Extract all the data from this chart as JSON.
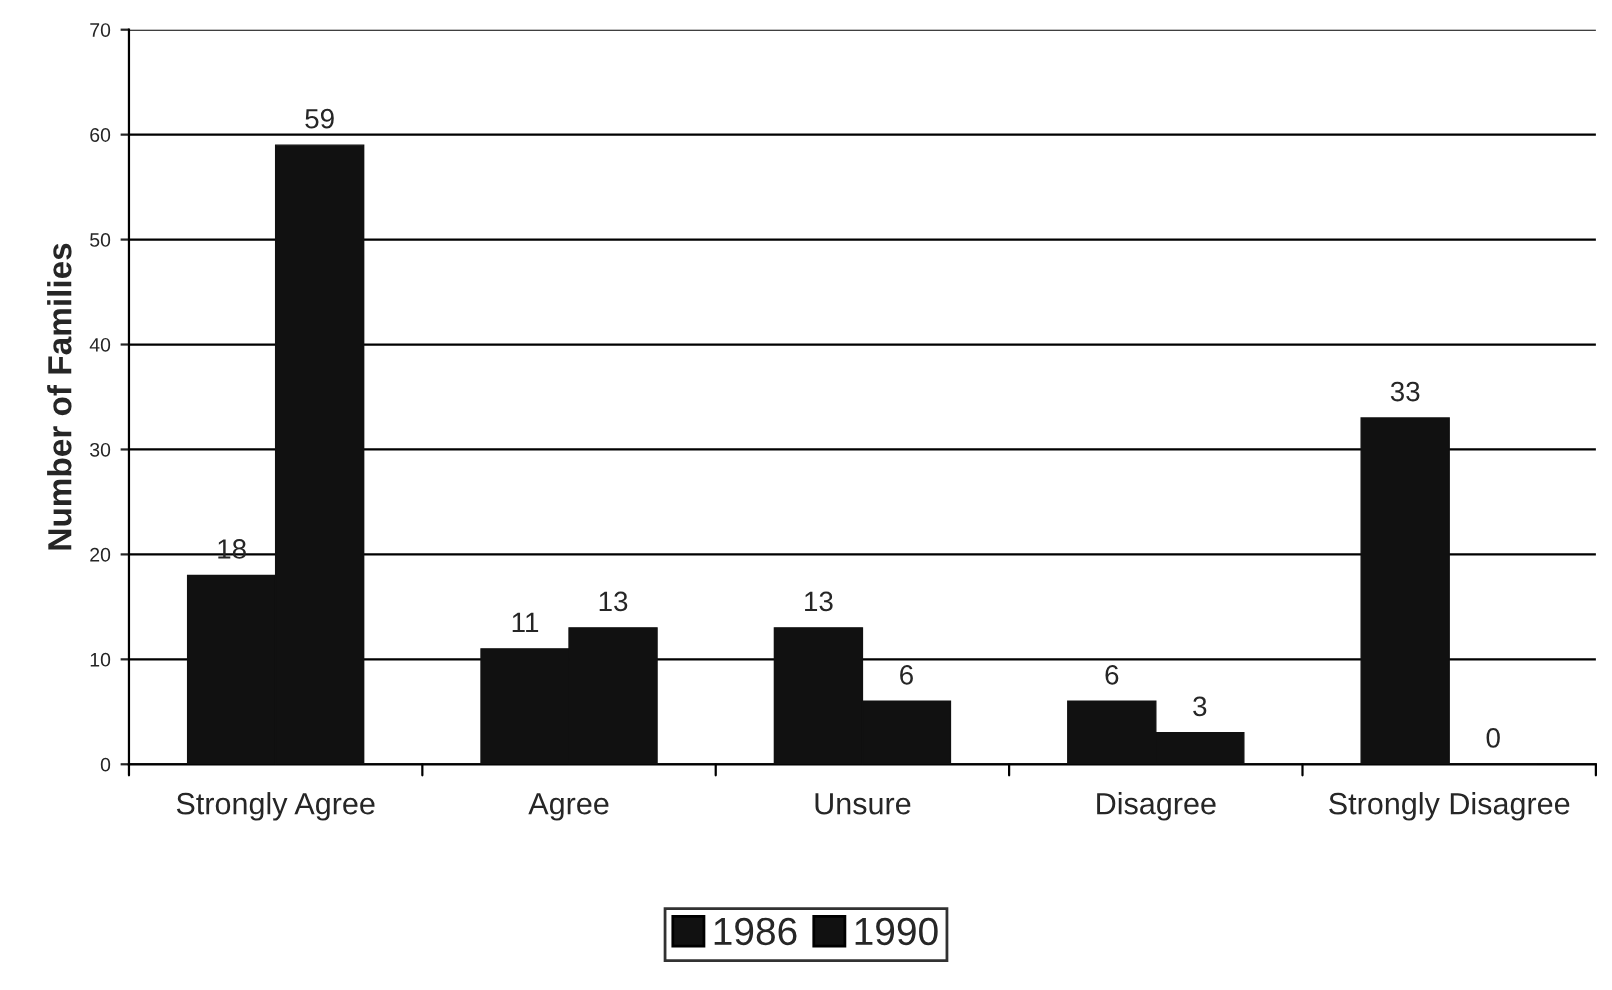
{
  "chart_data": {
    "type": "bar",
    "ylabel": "Number of Families",
    "categories": [
      "Strongly Agree",
      "Agree",
      "Unsure",
      "Disagree",
      "Strongly Disagree"
    ],
    "series": [
      {
        "name": "1986",
        "color": "#111111",
        "values": [
          18,
          11,
          13,
          6,
          33
        ]
      },
      {
        "name": "1990",
        "color": "#111111",
        "values": [
          59,
          13,
          6,
          3,
          0
        ]
      }
    ],
    "ylim": [
      0,
      70
    ],
    "yticks": [
      0,
      10,
      20,
      30,
      40,
      50,
      60,
      70
    ],
    "grid": "y",
    "legend": "bottom",
    "data_labels": true
  }
}
